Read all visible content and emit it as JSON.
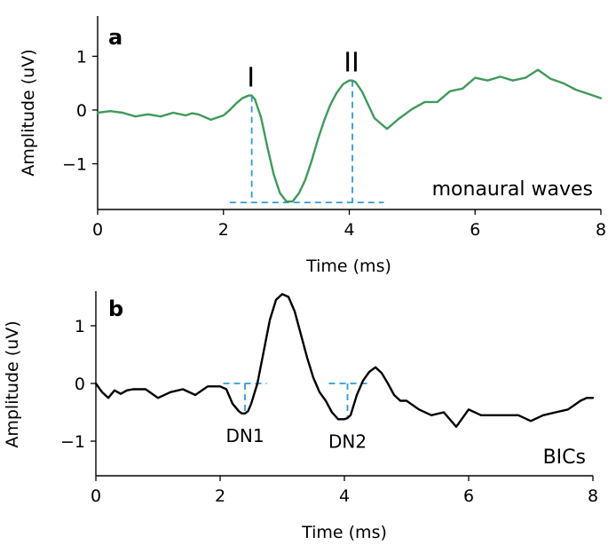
{
  "chart_data": [
    {
      "type": "line",
      "panel_letter": "a",
      "panel_label": "monaural waves",
      "xlabel": "Time (ms)",
      "ylabel": "Amplitude (uV)",
      "xlim": [
        0,
        8
      ],
      "ylim": [
        -1.85,
        1.75
      ],
      "xticks": [
        "0",
        "2",
        "4",
        "6",
        "8"
      ],
      "yticks": [
        "1",
        "0",
        "−1"
      ],
      "line_color": "#3f9a5a",
      "series": [
        {
          "x": [
            0,
            0.2,
            0.4,
            0.6,
            0.8,
            1.0,
            1.2,
            1.4,
            1.5,
            1.6,
            1.8,
            2.0,
            2.1,
            2.2,
            2.3,
            2.4,
            2.45,
            2.5,
            2.6,
            2.7,
            2.8,
            2.9,
            3.0,
            3.1,
            3.2,
            3.3,
            3.4,
            3.5,
            3.6,
            3.7,
            3.8,
            3.9,
            4.0,
            4.05,
            4.1,
            4.2,
            4.3,
            4.4,
            4.5,
            4.6,
            4.7,
            4.8,
            5.0,
            5.2,
            5.4,
            5.6,
            5.8,
            6.0,
            6.2,
            6.4,
            6.6,
            6.8,
            7.0,
            7.2,
            7.4,
            7.6,
            7.8,
            8.0
          ],
          "y": [
            -0.05,
            -0.02,
            -0.05,
            -0.12,
            -0.08,
            -0.12,
            -0.05,
            -0.1,
            -0.06,
            -0.08,
            -0.18,
            -0.1,
            0.0,
            0.12,
            0.22,
            0.27,
            0.27,
            0.2,
            -0.15,
            -0.7,
            -1.2,
            -1.55,
            -1.7,
            -1.7,
            -1.55,
            -1.3,
            -0.95,
            -0.55,
            -0.2,
            0.1,
            0.32,
            0.48,
            0.55,
            0.55,
            0.52,
            0.35,
            0.1,
            -0.15,
            -0.25,
            -0.35,
            -0.25,
            -0.15,
            0.02,
            0.15,
            0.15,
            0.35,
            0.4,
            0.6,
            0.55,
            0.62,
            0.55,
            0.6,
            0.75,
            0.58,
            0.5,
            0.38,
            0.3,
            0.22
          ]
        }
      ],
      "peak_labels": [
        {
          "text": "I",
          "x": 2.45,
          "y": 0.27
        },
        {
          "text": "II",
          "x": 4.05,
          "y": 0.55
        }
      ],
      "trough": {
        "x": 3.05,
        "y": -1.72
      }
    },
    {
      "type": "line",
      "panel_letter": "b",
      "panel_label": "BICs",
      "xlabel": "Time (ms)",
      "ylabel": "Amplitude (uV)",
      "xlim": [
        0,
        8
      ],
      "ylim": [
        -1.6,
        1.6
      ],
      "xticks": [
        "0",
        "2",
        "4",
        "6",
        "8"
      ],
      "yticks": [
        "1",
        "0",
        "−1"
      ],
      "line_color": "#000000",
      "series": [
        {
          "x": [
            0,
            0.1,
            0.2,
            0.3,
            0.4,
            0.5,
            0.6,
            0.8,
            1.0,
            1.2,
            1.4,
            1.6,
            1.8,
            2.0,
            2.1,
            2.2,
            2.3,
            2.35,
            2.4,
            2.45,
            2.5,
            2.6,
            2.7,
            2.8,
            2.9,
            3.0,
            3.1,
            3.2,
            3.3,
            3.4,
            3.5,
            3.6,
            3.7,
            3.8,
            3.9,
            4.0,
            4.05,
            4.1,
            4.2,
            4.3,
            4.4,
            4.5,
            4.6,
            4.7,
            4.8,
            4.9,
            5.0,
            5.2,
            5.4,
            5.6,
            5.8,
            6.0,
            6.2,
            6.4,
            6.6,
            6.8,
            7.0,
            7.2,
            7.4,
            7.6,
            7.8,
            7.9,
            8.0
          ],
          "y": [
            0.0,
            -0.15,
            -0.25,
            -0.12,
            -0.18,
            -0.12,
            -0.1,
            -0.1,
            -0.25,
            -0.15,
            -0.1,
            -0.2,
            -0.05,
            -0.05,
            -0.1,
            -0.35,
            -0.48,
            -0.52,
            -0.52,
            -0.48,
            -0.35,
            0.0,
            0.55,
            1.1,
            1.45,
            1.55,
            1.5,
            1.25,
            0.85,
            0.45,
            0.1,
            -0.15,
            -0.3,
            -0.5,
            -0.62,
            -0.62,
            -0.6,
            -0.55,
            -0.2,
            0.05,
            0.2,
            0.28,
            0.18,
            0.0,
            -0.2,
            -0.3,
            -0.3,
            -0.45,
            -0.55,
            -0.5,
            -0.75,
            -0.45,
            -0.55,
            -0.55,
            -0.55,
            -0.55,
            -0.65,
            -0.55,
            -0.5,
            -0.45,
            -0.3,
            -0.25,
            -0.25
          ]
        }
      ],
      "dn_labels": [
        {
          "text": "DN1",
          "x": 2.4,
          "y": -0.52,
          "x0": 2.05,
          "x1": 2.75
        },
        {
          "text": "DN2",
          "x": 4.05,
          "y": -0.62,
          "x0": 3.75,
          "x1": 4.4
        }
      ]
    }
  ]
}
